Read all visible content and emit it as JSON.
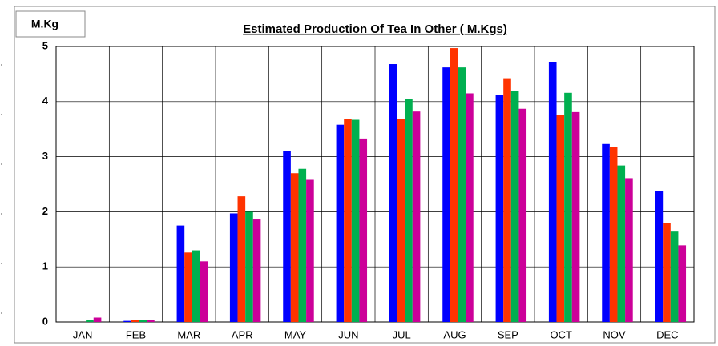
{
  "chart_data": {
    "type": "bar",
    "title": "Estimated Production Of Tea In Other ( M.Kgs)",
    "unit_label": "M.Kg",
    "categories": [
      "JAN",
      "FEB",
      "MAR",
      "APR",
      "MAY",
      "JUN",
      "JUL",
      "AUG",
      "SEP",
      "OCT",
      "NOV",
      "DEC"
    ],
    "series": [
      {
        "color": "#0000ff",
        "values": [
          0,
          0.02,
          1.75,
          1.97,
          3.1,
          3.58,
          4.68,
          4.62,
          4.12,
          4.71,
          3.23,
          2.38
        ]
      },
      {
        "color": "#ff3300",
        "values": [
          0,
          0.03,
          1.26,
          2.28,
          2.7,
          3.68,
          3.68,
          4.97,
          4.41,
          3.76,
          3.18,
          1.79
        ]
      },
      {
        "color": "#00b050",
        "values": [
          0.03,
          0.04,
          1.3,
          2.0,
          2.78,
          3.67,
          4.05,
          4.62,
          4.2,
          4.16,
          2.84,
          1.64
        ]
      },
      {
        "color": "#cc0099",
        "values": [
          0.08,
          0.03,
          1.1,
          1.86,
          2.58,
          3.33,
          3.82,
          4.15,
          3.87,
          3.81,
          2.61,
          1.39
        ]
      }
    ],
    "ylim": [
      0,
      5
    ],
    "yticks": [
      0,
      1,
      2,
      3,
      4,
      5
    ],
    "grid": true
  }
}
